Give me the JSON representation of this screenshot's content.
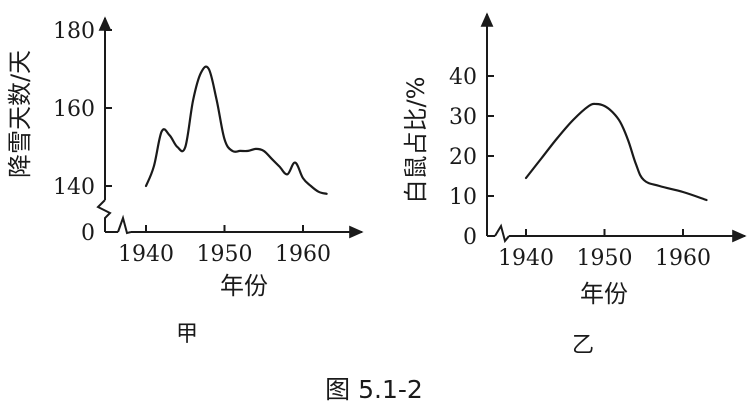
{
  "chart_data": [
    {
      "panel_label": "甲",
      "type": "line",
      "xlabel": "年份",
      "ylabel": "降雪天数/天",
      "xticks": [
        1940,
        1950,
        1960
      ],
      "yticks": [
        0,
        140,
        160,
        180
      ],
      "xlim": [
        1936,
        1968
      ],
      "ylim": [
        136,
        185
      ],
      "axis_break": true,
      "x": [
        1940,
        1941,
        1942,
        1943,
        1944,
        1945,
        1946,
        1947,
        1948,
        1949,
        1950,
        1951,
        1952,
        1953,
        1954,
        1955,
        1956,
        1957,
        1958,
        1959,
        1960,
        1961,
        1962,
        1963
      ],
      "y": [
        140,
        145,
        154,
        153,
        150,
        150,
        162,
        169,
        170,
        162,
        152,
        149,
        149,
        149,
        149.5,
        149,
        147,
        145,
        143,
        146,
        142,
        140,
        138.5,
        138
      ]
    },
    {
      "panel_label": "乙",
      "type": "line",
      "xlabel": "年份",
      "ylabel": "白鼠占比/%",
      "xticks": [
        1940,
        1950,
        1960
      ],
      "yticks": [
        0,
        10,
        20,
        30,
        40
      ],
      "xlim": [
        1936,
        1968
      ],
      "ylim": [
        0,
        52
      ],
      "axis_break": true,
      "x": [
        1940,
        1942,
        1944,
        1946,
        1948,
        1949,
        1950,
        1951,
        1952,
        1953,
        1954,
        1955,
        1957,
        1960,
        1963
      ],
      "y": [
        14.5,
        19.5,
        24.5,
        29,
        32.5,
        33,
        32.5,
        31,
        28.5,
        24,
        18,
        14,
        12.5,
        11,
        9
      ]
    }
  ],
  "figure_caption": "图 5.1-2"
}
